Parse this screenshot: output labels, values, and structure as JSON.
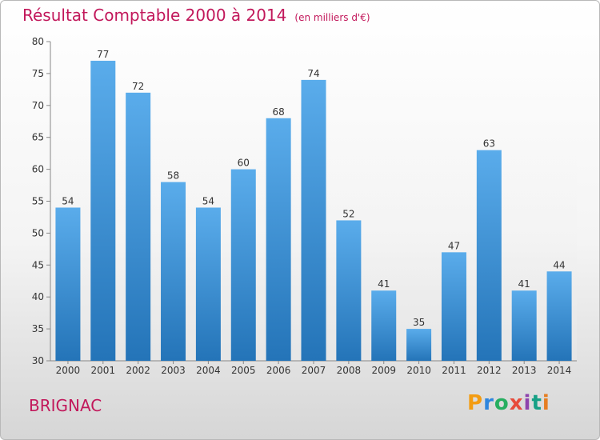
{
  "title": "Résultat Comptable 2000 à 2014",
  "subtitle": "(en milliers d'€)",
  "city": "BRIGNAC",
  "logo": {
    "letters": [
      "P",
      "r",
      "o",
      "x",
      "i",
      "t",
      "i"
    ],
    "colors": [
      "#f39c12",
      "#2e86de",
      "#27ae60",
      "#e74c3c",
      "#8e44ad",
      "#16a085",
      "#e67e22"
    ]
  },
  "chart_data": {
    "type": "bar",
    "title": "Résultat Comptable 2000 à 2014",
    "subtitle": "(en milliers d'€)",
    "xlabel": "",
    "ylabel": "",
    "categories": [
      "2000",
      "2001",
      "2002",
      "2003",
      "2004",
      "2005",
      "2006",
      "2007",
      "2008",
      "2009",
      "2010",
      "2011",
      "2012",
      "2013",
      "2014"
    ],
    "values": [
      54,
      77,
      72,
      58,
      54,
      60,
      68,
      74,
      52,
      41,
      35,
      47,
      63,
      41,
      44
    ],
    "ylim": [
      30,
      80
    ],
    "yticks": [
      30,
      35,
      40,
      45,
      50,
      55,
      60,
      65,
      70,
      75,
      80
    ],
    "bar_color": "#4f9fe0",
    "grid": false
  }
}
